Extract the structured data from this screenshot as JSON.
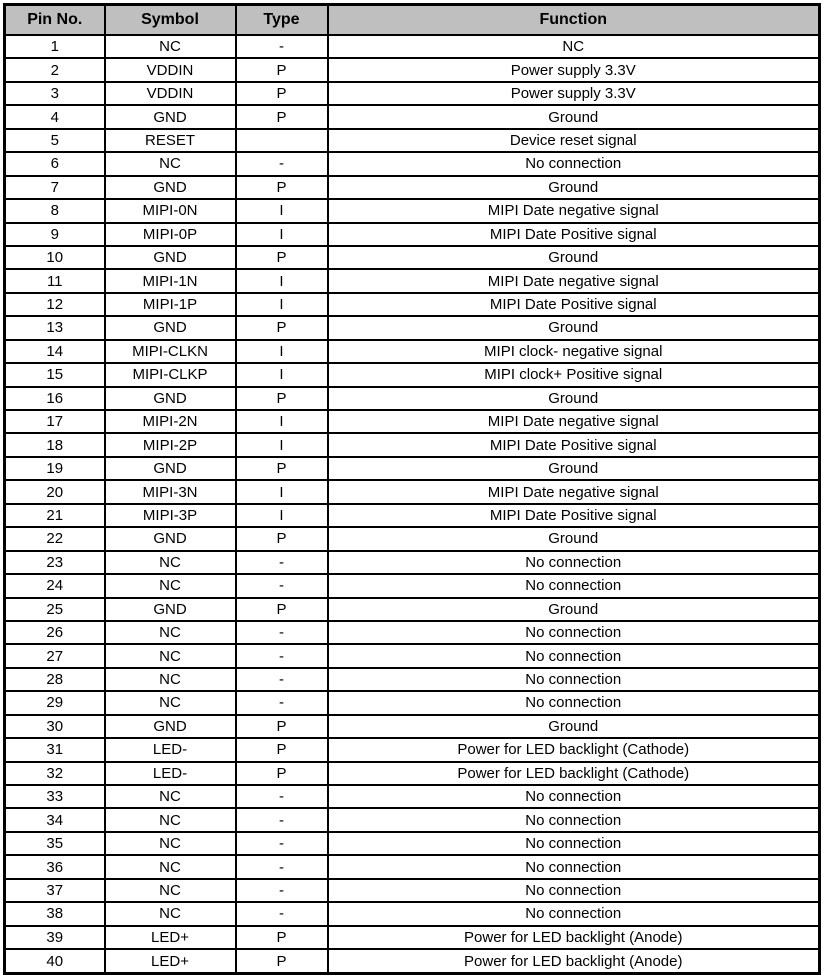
{
  "colors": {
    "header_bg": "#bfbfbf",
    "border": "#000000",
    "text": "#000000"
  },
  "table": {
    "columns": [
      {
        "key": "pin",
        "label": "Pin No."
      },
      {
        "key": "symbol",
        "label": "Symbol"
      },
      {
        "key": "type",
        "label": "Type"
      },
      {
        "key": "function",
        "label": "Function"
      }
    ],
    "rows": [
      [
        "1",
        "NC",
        "-",
        "NC"
      ],
      [
        "2",
        "VDDIN",
        "P",
        "Power supply 3.3V"
      ],
      [
        "3",
        "VDDIN",
        "P",
        "Power supply 3.3V"
      ],
      [
        "4",
        "GND",
        "P",
        "Ground"
      ],
      [
        "5",
        "RESET",
        "",
        "Device reset signal"
      ],
      [
        "6",
        "NC",
        "-",
        "No connection"
      ],
      [
        "7",
        "GND",
        "P",
        "Ground"
      ],
      [
        "8",
        "MIPI-0N",
        "I",
        "MIPI Date negative signal"
      ],
      [
        "9",
        "MIPI-0P",
        "I",
        "MIPI Date Positive signal"
      ],
      [
        "10",
        "GND",
        "P",
        "Ground"
      ],
      [
        "11",
        "MIPI-1N",
        "I",
        "MIPI Date negative signal"
      ],
      [
        "12",
        "MIPI-1P",
        "I",
        "MIPI Date Positive signal"
      ],
      [
        "13",
        "GND",
        "P",
        "Ground"
      ],
      [
        "14",
        "MIPI-CLKN",
        "I",
        "MIPI clock- negative signal"
      ],
      [
        "15",
        "MIPI-CLKP",
        "I",
        "MIPI clock+ Positive signal"
      ],
      [
        "16",
        "GND",
        "P",
        "Ground"
      ],
      [
        "17",
        "MIPI-2N",
        "I",
        "MIPI Date negative signal"
      ],
      [
        "18",
        "MIPI-2P",
        "I",
        "MIPI Date Positive signal"
      ],
      [
        "19",
        "GND",
        "P",
        "Ground"
      ],
      [
        "20",
        "MIPI-3N",
        "I",
        "MIPI Date negative signal"
      ],
      [
        "21",
        "MIPI-3P",
        "I",
        "MIPI Date Positive signal"
      ],
      [
        "22",
        "GND",
        "P",
        "Ground"
      ],
      [
        "23",
        "NC",
        "-",
        "No connection"
      ],
      [
        "24",
        "NC",
        "-",
        "No connection"
      ],
      [
        "25",
        "GND",
        "P",
        "Ground"
      ],
      [
        "26",
        "NC",
        "-",
        "No connection"
      ],
      [
        "27",
        "NC",
        "-",
        "No connection"
      ],
      [
        "28",
        "NC",
        "-",
        "No connection"
      ],
      [
        "29",
        "NC",
        "-",
        "No connection"
      ],
      [
        "30",
        "GND",
        "P",
        "Ground"
      ],
      [
        "31",
        "LED-",
        "P",
        "Power for LED backlight (Cathode)"
      ],
      [
        "32",
        "LED-",
        "P",
        "Power for LED backlight (Cathode)"
      ],
      [
        "33",
        "NC",
        "-",
        "No connection"
      ],
      [
        "34",
        "NC",
        "-",
        "No connection"
      ],
      [
        "35",
        "NC",
        "-",
        "No connection"
      ],
      [
        "36",
        "NC",
        "-",
        "No connection"
      ],
      [
        "37",
        "NC",
        "-",
        "No connection"
      ],
      [
        "38",
        "NC",
        "-",
        "No connection"
      ],
      [
        "39",
        "LED+",
        "P",
        "Power for LED backlight (Anode)"
      ],
      [
        "40",
        "LED+",
        "P",
        "Power for LED backlight (Anode)"
      ]
    ]
  }
}
